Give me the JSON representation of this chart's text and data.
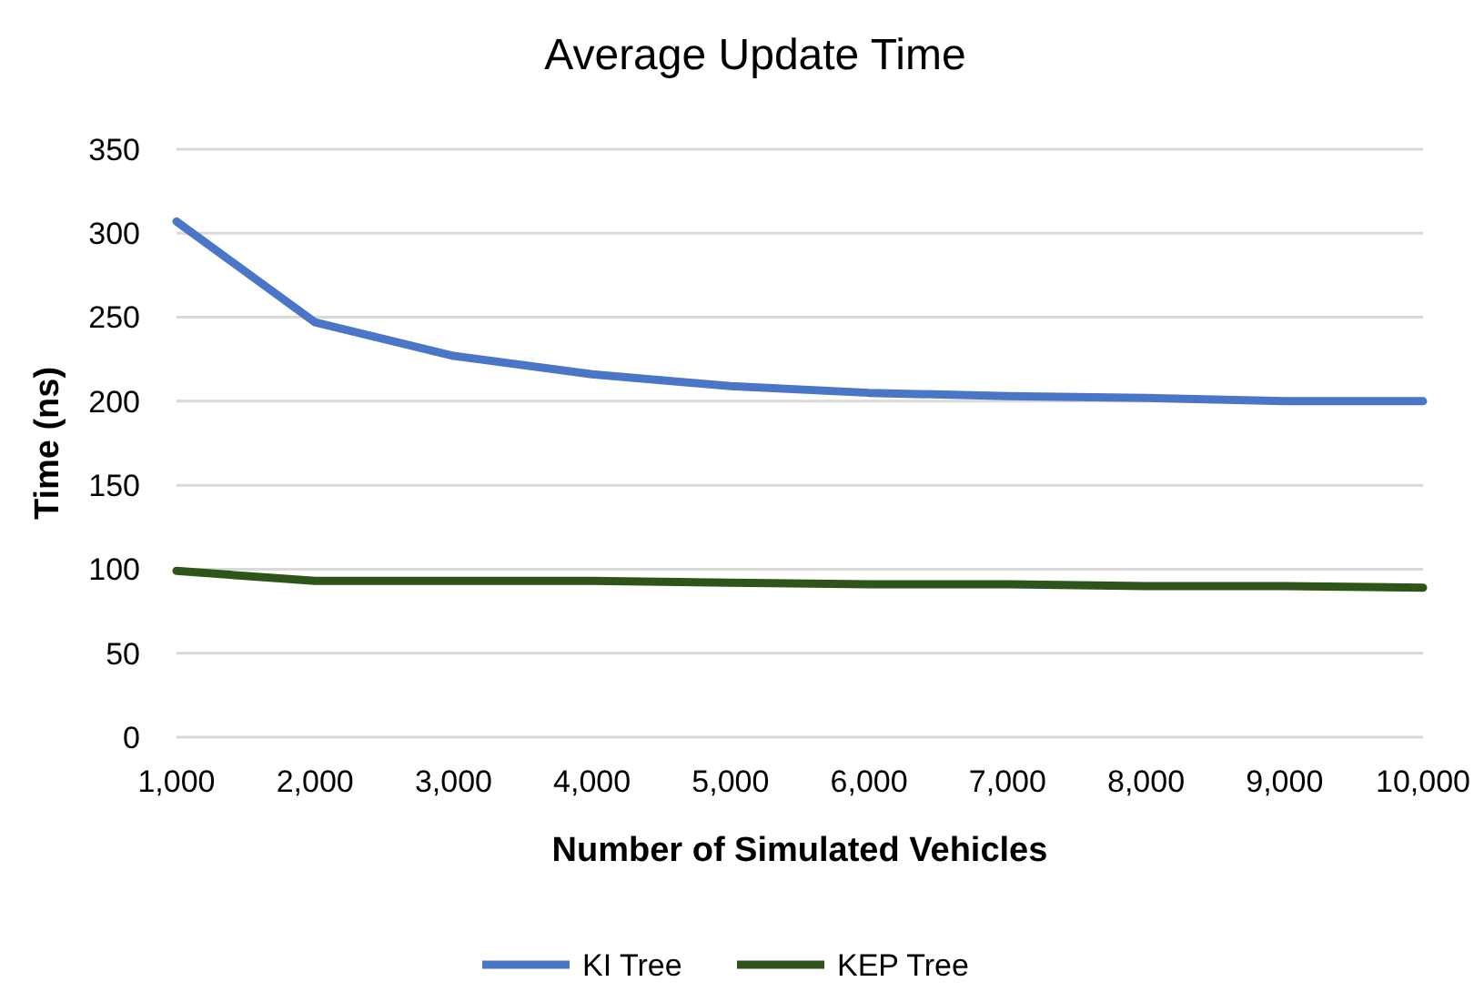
{
  "chart_data": {
    "type": "line",
    "title": "Average Update Time",
    "xlabel": "Number of Simulated Vehicles",
    "ylabel": "Time (ns)",
    "categories": [
      "1,000",
      "2,000",
      "3,000",
      "4,000",
      "5,000",
      "6,000",
      "7,000",
      "8,000",
      "9,000",
      "10,000"
    ],
    "series": [
      {
        "name": "KI Tree",
        "color": "#4a76c8",
        "values": [
          307,
          247,
          227,
          216,
          209,
          205,
          203,
          202,
          200,
          200
        ]
      },
      {
        "name": "KEP Tree",
        "color": "#2e5419",
        "values": [
          99,
          93,
          93,
          93,
          92,
          91,
          91,
          90,
          90,
          89
        ]
      }
    ],
    "ylim": [
      0,
      350
    ],
    "yticks": [
      0,
      50,
      100,
      150,
      200,
      250,
      300,
      350
    ],
    "grid": "y",
    "legend": "bottom",
    "marker": "none",
    "line_style": "solid"
  }
}
